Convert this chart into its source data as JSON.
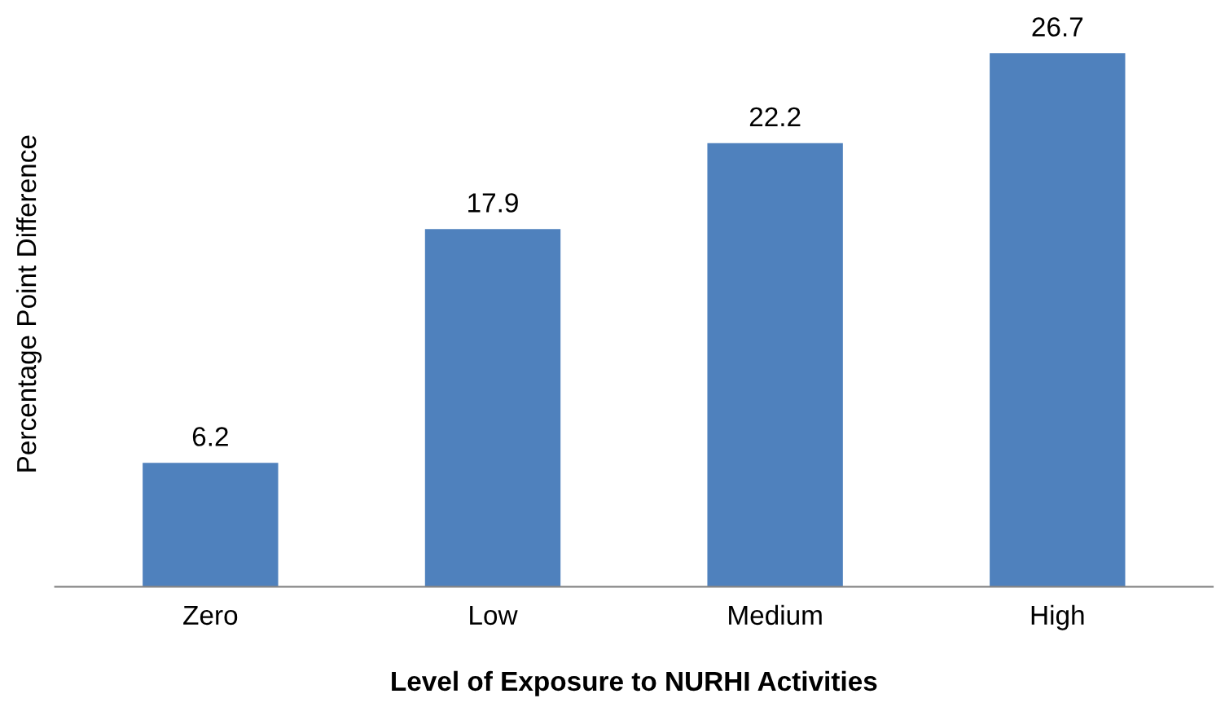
{
  "chart_data": {
    "type": "bar",
    "xlabel": "Level of Exposure to NURHI Activities",
    "ylabel": "Percentage Point Difference",
    "categories": [
      "Zero",
      "Low",
      "Medium",
      "High"
    ],
    "values": [
      6.2,
      17.9,
      22.2,
      26.7
    ],
    "color": "#4f81bd",
    "data_labels": true,
    "tick_labels": "x",
    "grid": false,
    "legend": false
  }
}
